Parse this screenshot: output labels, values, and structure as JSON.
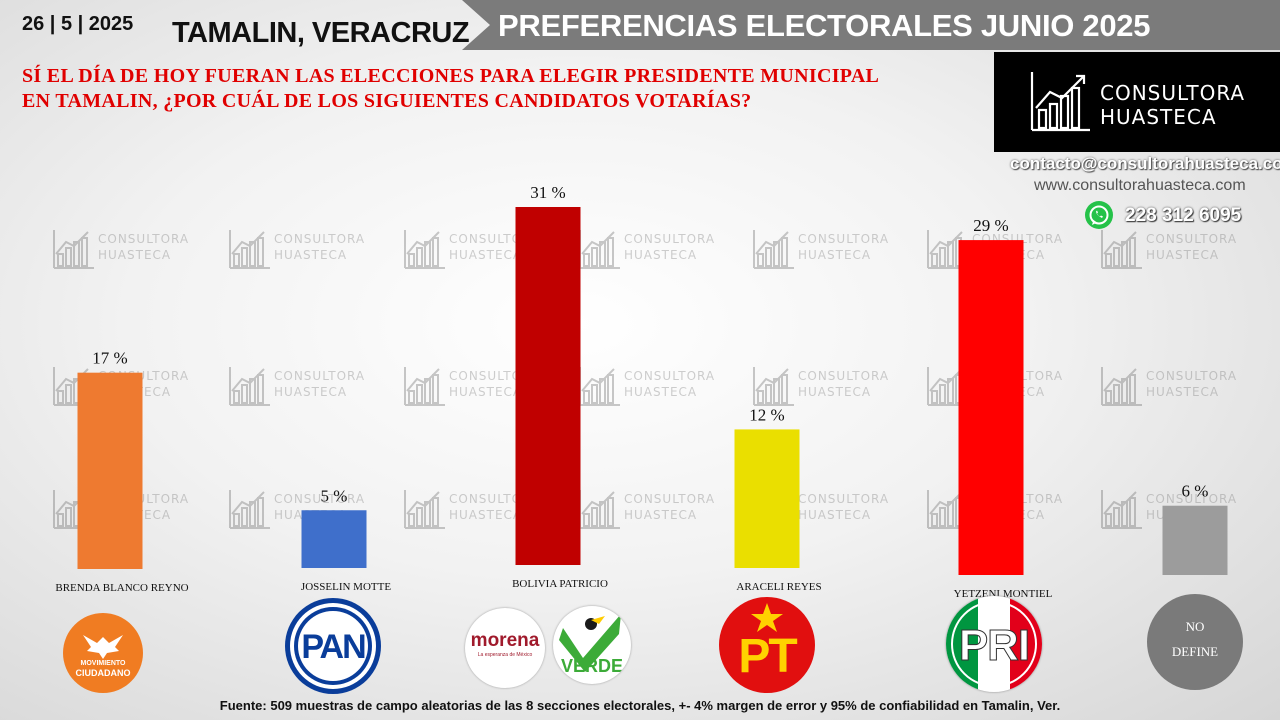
{
  "header": {
    "date": "26 | 5 | 2025",
    "place": "TAMALIN, VERACRUZ",
    "title": "PREFERENCIAS ELECTORALES JUNIO 2025",
    "question_line1": "SÍ EL DÍA DE HOY FUERAN LAS ELECCIONES PARA ELEGIR PRESIDENTE MUNICIPAL",
    "question_line2": "EN TAMALIN,  ¿POR CUÁL DE LOS SIGUIENTES CANDIDATOS VOTARÍAS?"
  },
  "brand": {
    "name_line1": "CONSULTORA",
    "name_line2": "HUASTECA",
    "email": "contacto@consultorahuasteca.com",
    "website": "www.consultorahuasteca.com",
    "phone": "228 312 6095",
    "whatsapp_icon": "whatsapp-icon"
  },
  "chart_data": {
    "type": "bar",
    "categories": [
      "BRENDA BLANCO REYNO",
      "JOSSELIN MOTTE",
      "BOLIVIA PATRICIO",
      "ARACELI REYES",
      "YETZENI MONTIEL",
      ""
    ],
    "values": [
      17,
      5,
      31,
      12,
      29,
      6
    ],
    "data_labels": [
      "17 %",
      "5 %",
      "31 %",
      "12 %",
      "29 %",
      "6 %"
    ],
    "colors": [
      "#ee7a30",
      "#3f6fcb",
      "#c00000",
      "#eadf00",
      "#ff0000",
      "#9c9c9c"
    ],
    "ylim": [
      0,
      31
    ],
    "grid": false,
    "legend": "none"
  },
  "parties": {
    "mc_line1": "MOVIMIENTO",
    "mc_line2": "CIUDADANO",
    "pan": "PAN",
    "morena": "morena",
    "morena_sub": "La esperanza de México",
    "verde": "VERDE",
    "pt": "PT",
    "pri": "PRI",
    "no_define_line1": "NO",
    "no_define_line2": "DEFINE"
  },
  "colors": {
    "accent_red": "#e00000",
    "banner_gray": "#7b7b7b",
    "mc_orange": "#f07c22",
    "pan_blue": "#0a3d9a",
    "morena_maroon": "#a01a2c",
    "verde_green": "#3cab38",
    "pt_red": "#e10f0f",
    "pt_yellow": "#ffd200",
    "pri_green": "#009640",
    "pri_red": "#e2001a"
  },
  "footer": {
    "source": "Fuente:  509 muestras de campo aleatorias de las  8 secciones electorales, +- 4% margen de error y 95% de confiabilidad en Tamalin, Ver."
  }
}
